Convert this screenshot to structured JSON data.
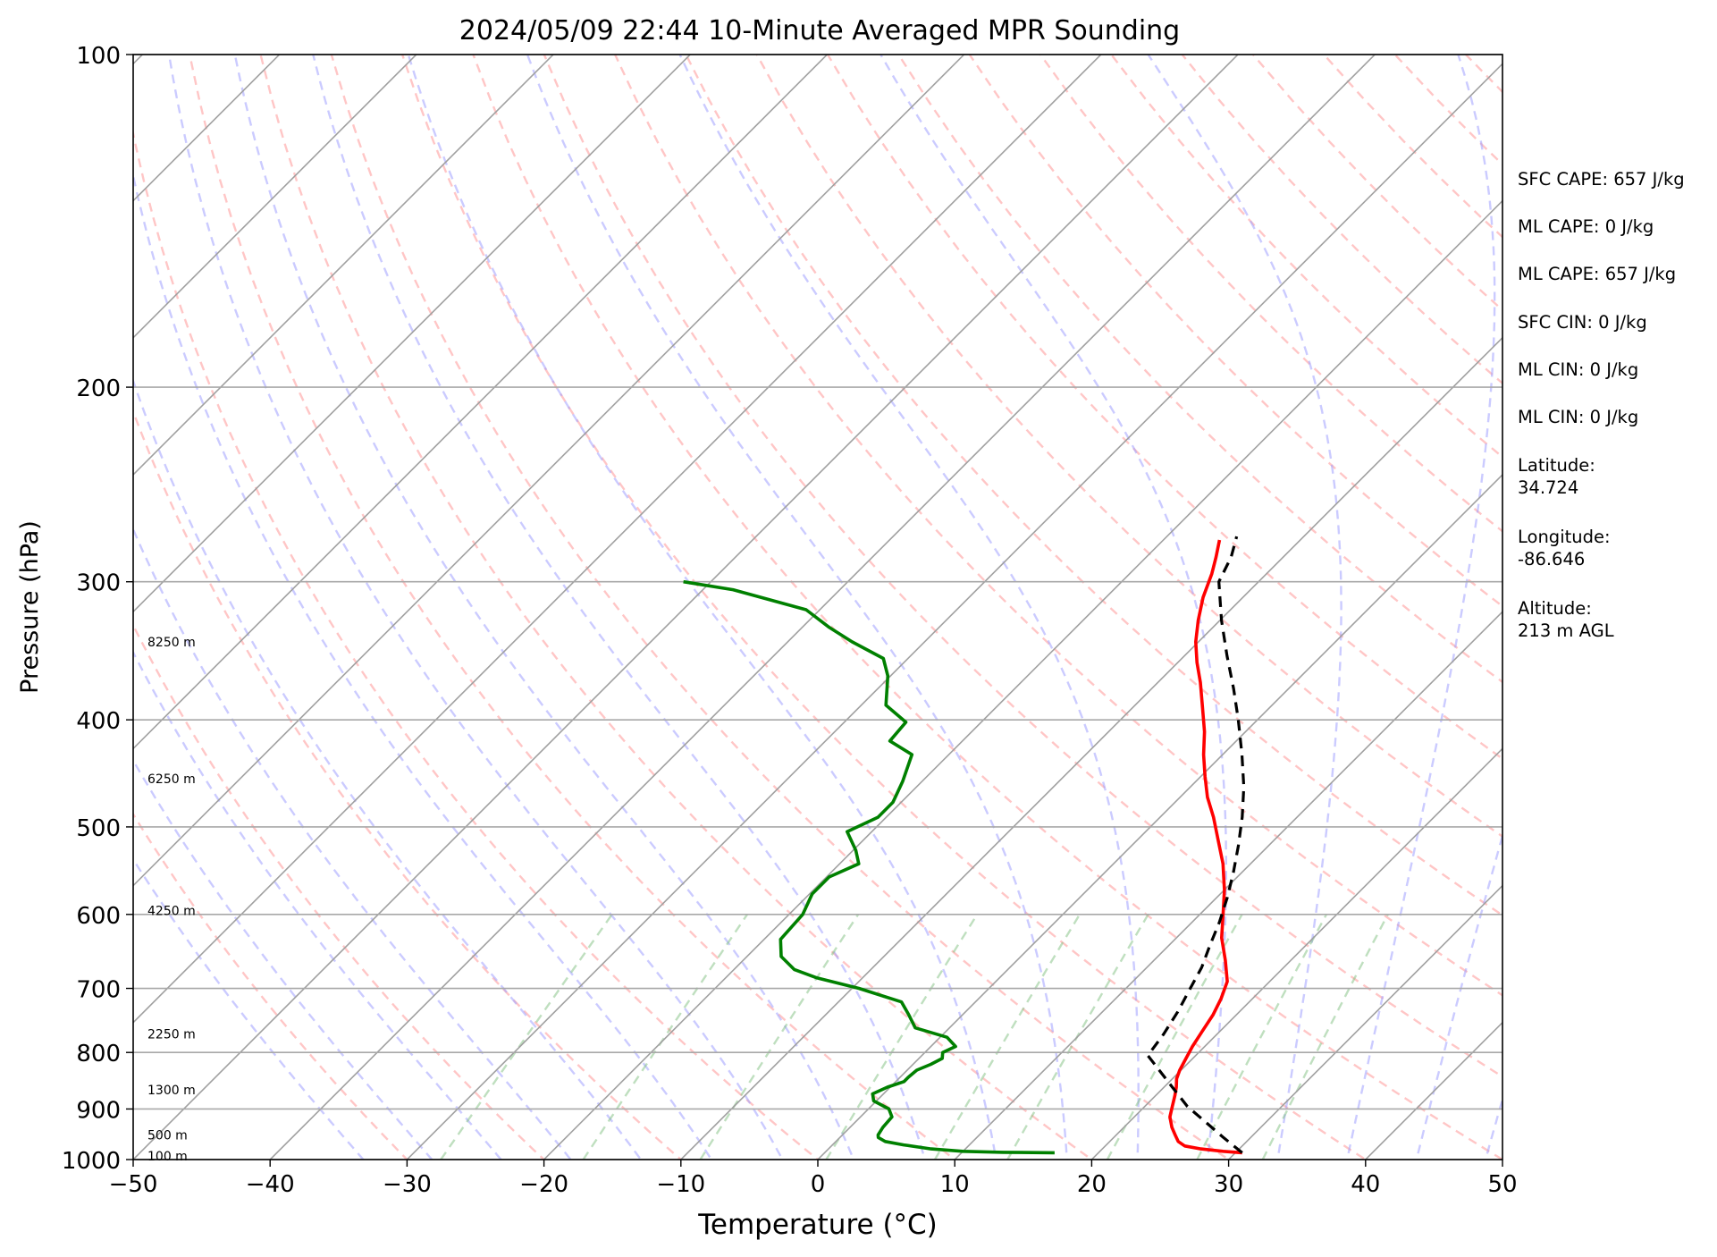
{
  "chart_data": {
    "type": "line",
    "title": "2024/05/09 22:44 10-Minute Averaged MPR Sounding",
    "xlabel": "Temperature (°C)",
    "ylabel": "Pressure (hPa)",
    "xlim": [
      -50,
      50
    ],
    "ylim": [
      1000,
      100
    ],
    "yscale": "log",
    "skew": "skew-T",
    "grid": true,
    "x_ticks": [
      "−50",
      "−40",
      "−30",
      "−20",
      "−10",
      "0",
      "10",
      "20",
      "30",
      "40",
      "50"
    ],
    "y_ticks": [
      "100",
      "200",
      "300",
      "400",
      "500",
      "600",
      "700",
      "800",
      "900",
      "1000"
    ],
    "height_labels": [
      {
        "label": "8250 m",
        "p": 340
      },
      {
        "label": "6250 m",
        "p": 452
      },
      {
        "label": "4250 m",
        "p": 595
      },
      {
        "label": "2250 m",
        "p": 770
      },
      {
        "label": "1300 m",
        "p": 865
      },
      {
        "label": "500 m",
        "p": 950
      },
      {
        "label": "100 m",
        "p": 993
      }
    ],
    "series": [
      {
        "role": "temperature",
        "color": "#ff0000",
        "points": [
          {
            "p": 986,
            "t": 30.5
          },
          {
            "p": 983,
            "t": 29.0
          },
          {
            "p": 978,
            "t": 27.2
          },
          {
            "p": 972,
            "t": 25.8
          },
          {
            "p": 963,
            "t": 25.0
          },
          {
            "p": 950,
            "t": 24.3
          },
          {
            "p": 935,
            "t": 23.5
          },
          {
            "p": 915,
            "t": 22.6
          },
          {
            "p": 895,
            "t": 22.0
          },
          {
            "p": 875,
            "t": 21.4
          },
          {
            "p": 860,
            "t": 20.9
          },
          {
            "p": 845,
            "t": 20.3
          },
          {
            "p": 830,
            "t": 19.9
          },
          {
            "p": 810,
            "t": 19.5
          },
          {
            "p": 790,
            "t": 19.1
          },
          {
            "p": 765,
            "t": 18.7
          },
          {
            "p": 740,
            "t": 18.3
          },
          {
            "p": 715,
            "t": 17.7
          },
          {
            "p": 690,
            "t": 16.9
          },
          {
            "p": 660,
            "t": 15.2
          },
          {
            "p": 630,
            "t": 13.3
          },
          {
            "p": 600,
            "t": 11.7
          },
          {
            "p": 570,
            "t": 10.0
          },
          {
            "p": 540,
            "t": 8.0
          },
          {
            "p": 515,
            "t": 6.0
          },
          {
            "p": 490,
            "t": 3.9
          },
          {
            "p": 470,
            "t": 2.0
          },
          {
            "p": 450,
            "t": 0.3
          },
          {
            "p": 430,
            "t": -1.4
          },
          {
            "p": 410,
            "t": -3.0
          },
          {
            "p": 390,
            "t": -4.9
          },
          {
            "p": 370,
            "t": -6.9
          },
          {
            "p": 355,
            "t": -8.6
          },
          {
            "p": 340,
            "t": -10.2
          },
          {
            "p": 325,
            "t": -11.6
          },
          {
            "p": 310,
            "t": -12.9
          },
          {
            "p": 295,
            "t": -14.0
          },
          {
            "p": 285,
            "t": -14.9
          },
          {
            "p": 275,
            "t": -15.9
          }
        ]
      },
      {
        "role": "dewpoint",
        "color": "#008000",
        "points": [
          {
            "p": 986,
            "t": 16.8
          },
          {
            "p": 985,
            "t": 13.0
          },
          {
            "p": 983,
            "t": 10.0
          },
          {
            "p": 978,
            "t": 7.5
          },
          {
            "p": 970,
            "t": 5.2
          },
          {
            "p": 963,
            "t": 3.6
          },
          {
            "p": 955,
            "t": 2.8
          },
          {
            "p": 950,
            "t": 2.6
          },
          {
            "p": 935,
            "t": 2.4
          },
          {
            "p": 915,
            "t": 2.3
          },
          {
            "p": 900,
            "t": 1.5
          },
          {
            "p": 885,
            "t": -0.2
          },
          {
            "p": 872,
            "t": -0.8
          },
          {
            "p": 860,
            "t": -0.2
          },
          {
            "p": 850,
            "t": 0.6
          },
          {
            "p": 842,
            "t": 0.6
          },
          {
            "p": 830,
            "t": 0.7
          },
          {
            "p": 820,
            "t": 1.3
          },
          {
            "p": 810,
            "t": 1.7
          },
          {
            "p": 800,
            "t": 1.3
          },
          {
            "p": 790,
            "t": 1.8
          },
          {
            "p": 775,
            "t": 0.5
          },
          {
            "p": 760,
            "t": -2.5
          },
          {
            "p": 740,
            "t": -3.9
          },
          {
            "p": 720,
            "t": -5.4
          },
          {
            "p": 700,
            "t": -9.5
          },
          {
            "p": 685,
            "t": -13.3
          },
          {
            "p": 673,
            "t": -15.6
          },
          {
            "p": 655,
            "t": -17.5
          },
          {
            "p": 632,
            "t": -18.8
          },
          {
            "p": 600,
            "t": -19.0
          },
          {
            "p": 575,
            "t": -19.8
          },
          {
            "p": 555,
            "t": -19.8
          },
          {
            "p": 540,
            "t": -18.6
          },
          {
            "p": 525,
            "t": -19.8
          },
          {
            "p": 505,
            "t": -21.8
          },
          {
            "p": 490,
            "t": -20.6
          },
          {
            "p": 475,
            "t": -20.6
          },
          {
            "p": 455,
            "t": -21.4
          },
          {
            "p": 430,
            "t": -22.7
          },
          {
            "p": 418,
            "t": -25.3
          },
          {
            "p": 402,
            "t": -25.5
          },
          {
            "p": 388,
            "t": -28.2
          },
          {
            "p": 365,
            "t": -30.2
          },
          {
            "p": 352,
            "t": -31.8
          },
          {
            "p": 340,
            "t": -35.3
          },
          {
            "p": 330,
            "t": -38.0
          },
          {
            "p": 318,
            "t": -41.0
          },
          {
            "p": 305,
            "t": -47.8
          },
          {
            "p": 300,
            "t": -52.0
          }
        ]
      },
      {
        "role": "parcel",
        "color": "#000000",
        "style": "dashed",
        "points": [
          {
            "p": 986,
            "t": 30.5
          },
          {
            "p": 955,
            "t": 28.0
          },
          {
            "p": 925,
            "t": 25.6
          },
          {
            "p": 895,
            "t": 23.1
          },
          {
            "p": 860,
            "t": 20.6
          },
          {
            "p": 830,
            "t": 18.4
          },
          {
            "p": 805,
            "t": 16.5
          },
          {
            "p": 770,
            "t": 16.1
          },
          {
            "p": 735,
            "t": 15.5
          },
          {
            "p": 700,
            "t": 14.7
          },
          {
            "p": 670,
            "t": 14.0
          },
          {
            "p": 640,
            "t": 13.0
          },
          {
            "p": 610,
            "t": 12.0
          },
          {
            "p": 580,
            "t": 10.8
          },
          {
            "p": 550,
            "t": 9.4
          },
          {
            "p": 520,
            "t": 7.8
          },
          {
            "p": 490,
            "t": 6.0
          },
          {
            "p": 460,
            "t": 3.9
          },
          {
            "p": 430,
            "t": 1.4
          },
          {
            "p": 400,
            "t": -1.4
          },
          {
            "p": 375,
            "t": -4.0
          },
          {
            "p": 350,
            "t": -6.9
          },
          {
            "p": 325,
            "t": -9.9
          },
          {
            "p": 300,
            "t": -12.9
          },
          {
            "p": 285,
            "t": -13.8
          },
          {
            "p": 273,
            "t": -14.9
          }
        ]
      }
    ],
    "reference_lines": {
      "isotherm_color": "#a0a0a0",
      "dry_adiabat_color": "#ffa0a0",
      "moist_adiabat_color": "#a0a0ff",
      "mixing_ratio_color": "#80c080"
    }
  },
  "info": {
    "sfc_cape": "SFC CAPE: 657 J/kg",
    "ml_cape_1": "ML CAPE: 0 J/kg",
    "ml_cape_2": "ML CAPE: 657 J/kg",
    "sfc_cin": "SFC CIN: 0 J/kg",
    "ml_cin_1": "ML CIN: 0 J/kg",
    "ml_cin_2": "ML CIN: 0 J/kg",
    "latitude_label": "Latitude:",
    "latitude_value": "34.724",
    "longitude_label": "Longitude:",
    "longitude_value": "-86.646",
    "altitude_label": "Altitude:",
    "altitude_value": "213 m AGL"
  }
}
